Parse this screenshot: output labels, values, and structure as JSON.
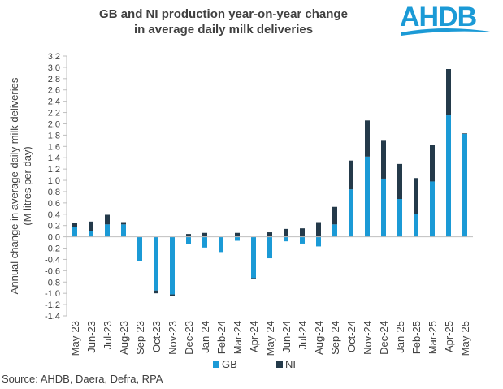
{
  "title_line1": "GB and NI production year-on-year change",
  "title_line2": "in average daily milk deliveries",
  "logo_text": "AHDB",
  "source": "Source: AHDB, Daera, Defra, RPA",
  "colors": {
    "gb": "#1b9ad6",
    "ni": "#243a4a",
    "logo": "#1b9ad6",
    "axis": "#bfbfbf",
    "text": "#404040"
  },
  "chart_data": {
    "type": "bar",
    "stacked": true,
    "title": "GB and NI production year-on-year change in average daily milk deliveries",
    "ylabel_line1": "Annual change in average daily milk deliveries",
    "ylabel_line2": "(M litres per day)",
    "xlabel": "",
    "ylim": [
      -1.4,
      3.2
    ],
    "ytick_step": 0.2,
    "yticks": [
      "-1.4",
      "-1.2",
      "-1.0",
      "-0.8",
      "-0.6",
      "-0.4",
      "-0.2",
      "0.0",
      "0.2",
      "0.4",
      "0.6",
      "0.8",
      "1.0",
      "1.2",
      "1.4",
      "1.6",
      "1.8",
      "2.0",
      "2.2",
      "2.4",
      "2.6",
      "2.8",
      "3.0",
      "3.2"
    ],
    "categories": [
      "May-23",
      "Jun-23",
      "Jul-23",
      "Aug-23",
      "Sep-23",
      "Oct-23",
      "Nov-23",
      "Dec-23",
      "Jan-24",
      "Feb-24",
      "Mar-24",
      "Apr-24",
      "May-24",
      "Jun-24",
      "Jul-24",
      "Aug-24",
      "Sep-24",
      "Oct-24",
      "Nov-24",
      "Dec-24",
      "Jan-25",
      "Feb-25",
      "Mar-25",
      "Apr-25",
      "May-25"
    ],
    "series": [
      {
        "name": "GB",
        "values": [
          0.18,
          0.1,
          0.22,
          0.22,
          -0.43,
          -0.95,
          -1.02,
          -0.13,
          -0.19,
          -0.27,
          -0.07,
          -0.73,
          -0.38,
          -0.08,
          -0.12,
          -0.17,
          0.22,
          0.84,
          1.42,
          1.03,
          0.67,
          0.41,
          0.98,
          2.15,
          1.82
        ]
      },
      {
        "name": "NI",
        "values": [
          0.06,
          0.17,
          0.17,
          0.04,
          0.0,
          -0.05,
          -0.03,
          0.05,
          0.07,
          0.0,
          0.07,
          -0.02,
          0.08,
          0.14,
          0.15,
          0.26,
          0.31,
          0.51,
          0.64,
          0.67,
          0.62,
          0.63,
          0.65,
          0.82,
          0.01
        ]
      }
    ],
    "legend": {
      "position": "bottom",
      "entries": [
        "GB",
        "NI"
      ]
    },
    "grid": false
  }
}
